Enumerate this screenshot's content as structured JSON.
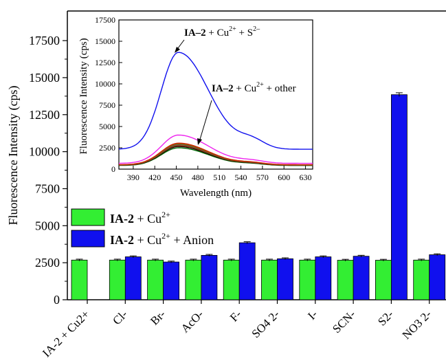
{
  "chart_data": [
    {
      "type": "bar",
      "ylabel": "Fluorescence Intensity (cps)",
      "ylim": [
        0,
        19500
      ],
      "yticks": [
        "0",
        "2500",
        "5000",
        "7500",
        "10000",
        "12500",
        "15000",
        "17500"
      ],
      "categories": [
        "IA-2 + Cu2+",
        "Cl-",
        "Br-",
        "AcO-",
        "F-",
        "SO4 2-",
        "I-",
        "SCN-",
        "S2-",
        "NO3 2-"
      ],
      "series": [
        {
          "color": "#33ee33",
          "legend": {
            "bold": "IA-2",
            "plain": " + Cu",
            "sup": "2+",
            "tail": ""
          },
          "values": [
            2680,
            2680,
            2680,
            2680,
            2680,
            2680,
            2680,
            2670,
            2670,
            2680
          ]
        },
        {
          "color": "#1010ee",
          "legend": {
            "bold": "IA-2",
            "plain": " + Cu",
            "sup": "2+",
            "tail": " + Anion"
          },
          "values": [
            null,
            2900,
            2550,
            3000,
            3850,
            2770,
            2900,
            2940,
            13850,
            3040
          ]
        }
      ],
      "legend_position": "left-middle"
    },
    {
      "type": "line",
      "xlabel": "Wavelength (nm)",
      "ylabel": "Fluorescence Intensity (cps)",
      "xlim": [
        370,
        640
      ],
      "ylim": [
        0,
        17500
      ],
      "xticks": [
        "390",
        "420",
        "450",
        "480",
        "510",
        "540",
        "570",
        "600",
        "630"
      ],
      "yticks": [
        "0",
        "2500",
        "5000",
        "7500",
        "10000",
        "12500",
        "15000",
        "17500"
      ],
      "annotations": [
        {
          "bold": "IA–2",
          "plain": " + Cu",
          "sup": "2+",
          "tail": " +  S",
          "tail_sup": "2–"
        },
        {
          "bold": "IA–2",
          "plain": " + Cu",
          "sup": "2+",
          "tail": " + other",
          "tail_sup": ""
        }
      ],
      "series": [
        {
          "color": "#1010ee",
          "peak": 13700
        },
        {
          "color": "#ee22ee",
          "peak": 4000
        },
        {
          "color": "#cc2200",
          "peak": 3050
        },
        {
          "color": "#886600",
          "peak": 2950
        },
        {
          "color": "#555555",
          "peak": 2850
        },
        {
          "color": "#aa3300",
          "peak": 2750
        },
        {
          "color": "#000000",
          "peak": 2650
        },
        {
          "color": "#006600",
          "peak": 2500
        }
      ]
    }
  ]
}
